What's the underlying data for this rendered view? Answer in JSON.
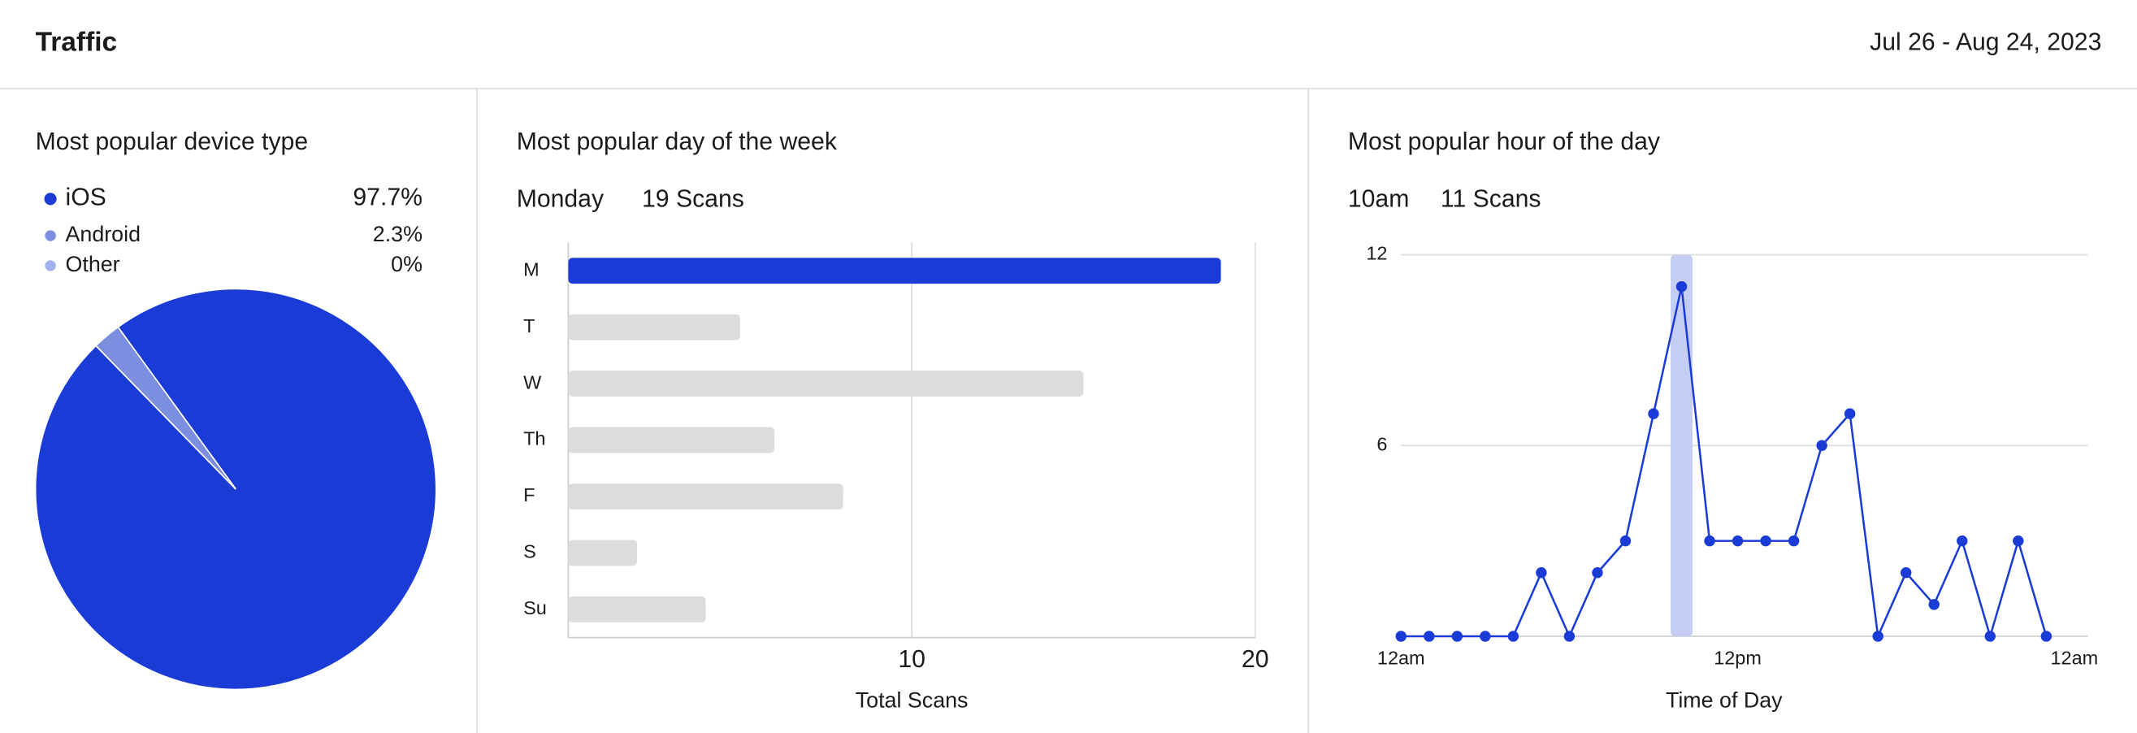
{
  "header": {
    "title": "Traffic",
    "date_range": "Jul 26 - Aug 24, 2023"
  },
  "chart_data": [
    {
      "type": "pie",
      "title": "Most popular device type",
      "categories": [
        "iOS",
        "Android",
        "Other"
      ],
      "values": [
        97.7,
        2.3,
        0
      ],
      "value_labels": [
        "97.7%",
        "2.3%",
        "0%"
      ],
      "colors": [
        "#1a3bd6",
        "#7b8ee0",
        "#a3b0ee"
      ]
    },
    {
      "type": "bar",
      "title": "Most popular day of the week",
      "highlight_label": "Monday",
      "highlight_value": "19 Scans",
      "categories": [
        "M",
        "T",
        "W",
        "Th",
        "F",
        "S",
        "Su"
      ],
      "values": [
        19,
        5,
        15,
        6,
        8,
        2,
        4
      ],
      "colors": [
        "#1a3bd6",
        "#dcdcdc",
        "#dcdcdc",
        "#dcdcdc",
        "#dcdcdc",
        "#dcdcdc",
        "#dcdcdc"
      ],
      "xlim": [
        0,
        20
      ],
      "xticks": [
        10,
        20
      ],
      "xlabel": "Total Scans",
      "grid": true
    },
    {
      "type": "line",
      "title": "Most popular hour of the day",
      "highlight_label": "10am",
      "highlight_value": "11 Scans",
      "x": [
        0,
        1,
        2,
        3,
        4,
        5,
        6,
        7,
        8,
        9,
        10,
        11,
        12,
        13,
        14,
        15,
        16,
        17,
        18,
        19,
        20,
        21,
        22,
        23
      ],
      "values": [
        0,
        0,
        0,
        0,
        0,
        2,
        0,
        2,
        3,
        7,
        11,
        3,
        3,
        3,
        3,
        6,
        7,
        0,
        2,
        1,
        3,
        0,
        3,
        0
      ],
      "color": "#1a3bd6",
      "highlight_x": 10,
      "highlight_color": "#c5cdf3",
      "xlim": [
        0,
        24
      ],
      "xticks": [
        {
          "value": 0,
          "label": "12am"
        },
        {
          "value": 12,
          "label": "12pm"
        },
        {
          "value": 24,
          "label": "12am"
        }
      ],
      "ylim": [
        0,
        12
      ],
      "yticks": [
        6,
        12
      ],
      "xlabel": "Time of Day",
      "grid": true
    }
  ]
}
